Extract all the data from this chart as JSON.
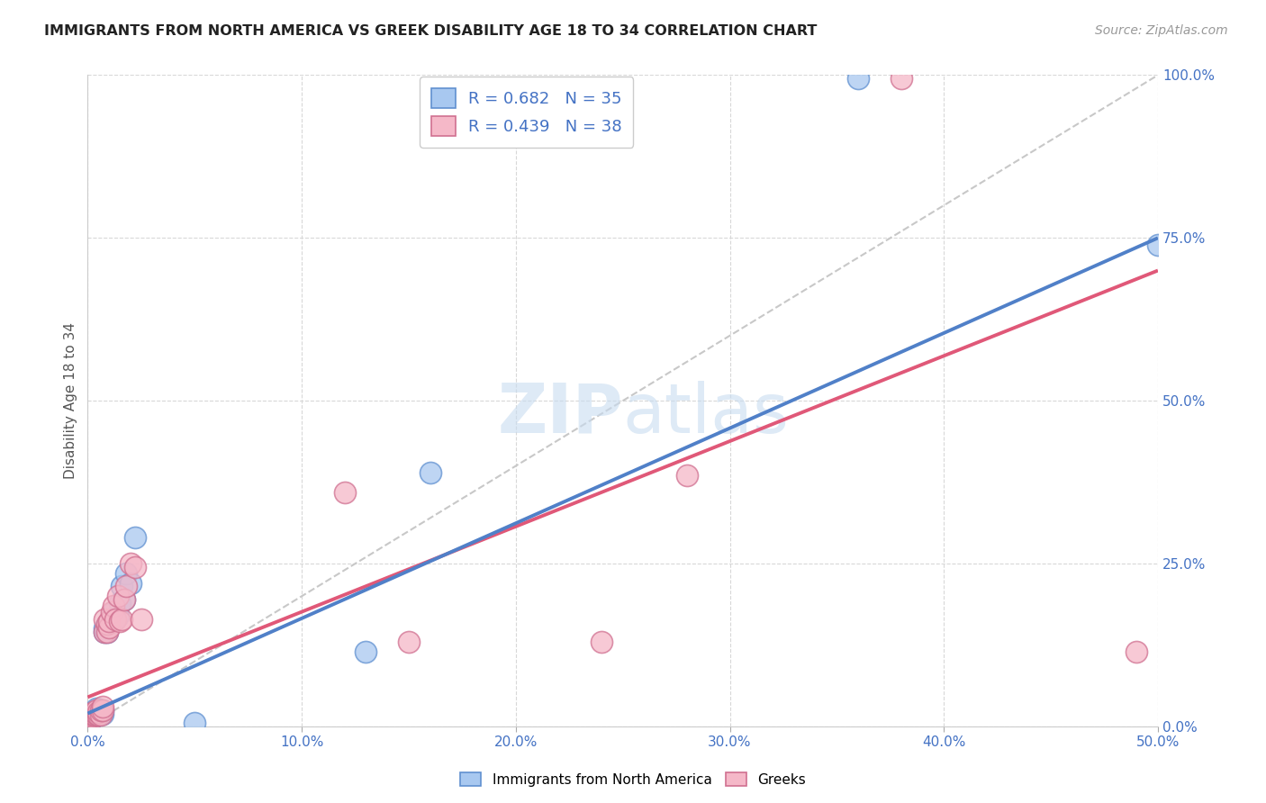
{
  "title": "IMMIGRANTS FROM NORTH AMERICA VS GREEK DISABILITY AGE 18 TO 34 CORRELATION CHART",
  "source": "Source: ZipAtlas.com",
  "ylabel": "Disability Age 18 to 34",
  "xlim": [
    0.0,
    0.5
  ],
  "ylim": [
    0.0,
    1.0
  ],
  "xtick_vals": [
    0.0,
    0.1,
    0.2,
    0.3,
    0.4,
    0.5
  ],
  "xtick_labels": [
    "0.0%",
    "10.0%",
    "20.0%",
    "30.0%",
    "40.0%",
    "50.0%"
  ],
  "ytick_vals": [
    0.0,
    0.25,
    0.5,
    0.75,
    1.0
  ],
  "ytick_labels": [
    "0.0%",
    "25.0%",
    "50.0%",
    "75.0%",
    "100.0%"
  ],
  "legend_label1": "Immigrants from North America",
  "legend_label2": "Greeks",
  "R1": 0.682,
  "N1": 35,
  "R2": 0.439,
  "N2": 38,
  "color_blue_fill": "#A8C8F0",
  "color_blue_edge": "#6090D0",
  "color_pink_fill": "#F5B8C8",
  "color_pink_edge": "#D07090",
  "color_blue_line": "#5080C8",
  "color_pink_line": "#E05878",
  "color_dash": "#C8C8C8",
  "color_text_blue": "#4472C4",
  "color_grid": "#D8D8D8",
  "watermark_color": "#C8DCF0",
  "blue_scatter_x": [
    0.001,
    0.002,
    0.002,
    0.003,
    0.003,
    0.003,
    0.004,
    0.004,
    0.005,
    0.005,
    0.006,
    0.006,
    0.007,
    0.007,
    0.008,
    0.008,
    0.009,
    0.009,
    0.01,
    0.01,
    0.011,
    0.012,
    0.013,
    0.014,
    0.015,
    0.016,
    0.017,
    0.018,
    0.02,
    0.022,
    0.05,
    0.13,
    0.16,
    0.36,
    0.5
  ],
  "blue_scatter_y": [
    0.01,
    0.012,
    0.015,
    0.018,
    0.02,
    0.022,
    0.025,
    0.028,
    0.018,
    0.025,
    0.02,
    0.025,
    0.02,
    0.025,
    0.145,
    0.15,
    0.155,
    0.145,
    0.155,
    0.16,
    0.165,
    0.175,
    0.165,
    0.17,
    0.19,
    0.215,
    0.195,
    0.235,
    0.22,
    0.29,
    0.005,
    0.115,
    0.39,
    0.995,
    0.74
  ],
  "pink_scatter_x": [
    0.001,
    0.001,
    0.002,
    0.002,
    0.003,
    0.003,
    0.003,
    0.004,
    0.004,
    0.005,
    0.005,
    0.006,
    0.006,
    0.007,
    0.007,
    0.008,
    0.008,
    0.009,
    0.009,
    0.01,
    0.01,
    0.011,
    0.012,
    0.013,
    0.014,
    0.015,
    0.016,
    0.017,
    0.018,
    0.02,
    0.022,
    0.025,
    0.12,
    0.15,
    0.24,
    0.28,
    0.38,
    0.49
  ],
  "pink_scatter_y": [
    0.01,
    0.015,
    0.015,
    0.018,
    0.018,
    0.02,
    0.022,
    0.02,
    0.025,
    0.018,
    0.022,
    0.018,
    0.025,
    0.025,
    0.03,
    0.145,
    0.165,
    0.145,
    0.158,
    0.152,
    0.162,
    0.175,
    0.185,
    0.165,
    0.2,
    0.162,
    0.165,
    0.195,
    0.215,
    0.25,
    0.245,
    0.165,
    0.36,
    0.13,
    0.13,
    0.385,
    0.995,
    0.115
  ],
  "blue_line_x": [
    0.0,
    0.5
  ],
  "blue_line_y": [
    0.02,
    0.75
  ],
  "pink_line_x": [
    0.0,
    0.5
  ],
  "pink_line_y": [
    0.045,
    0.7
  ],
  "dash_line_x": [
    0.0,
    0.5
  ],
  "dash_line_y": [
    0.0,
    1.0
  ]
}
